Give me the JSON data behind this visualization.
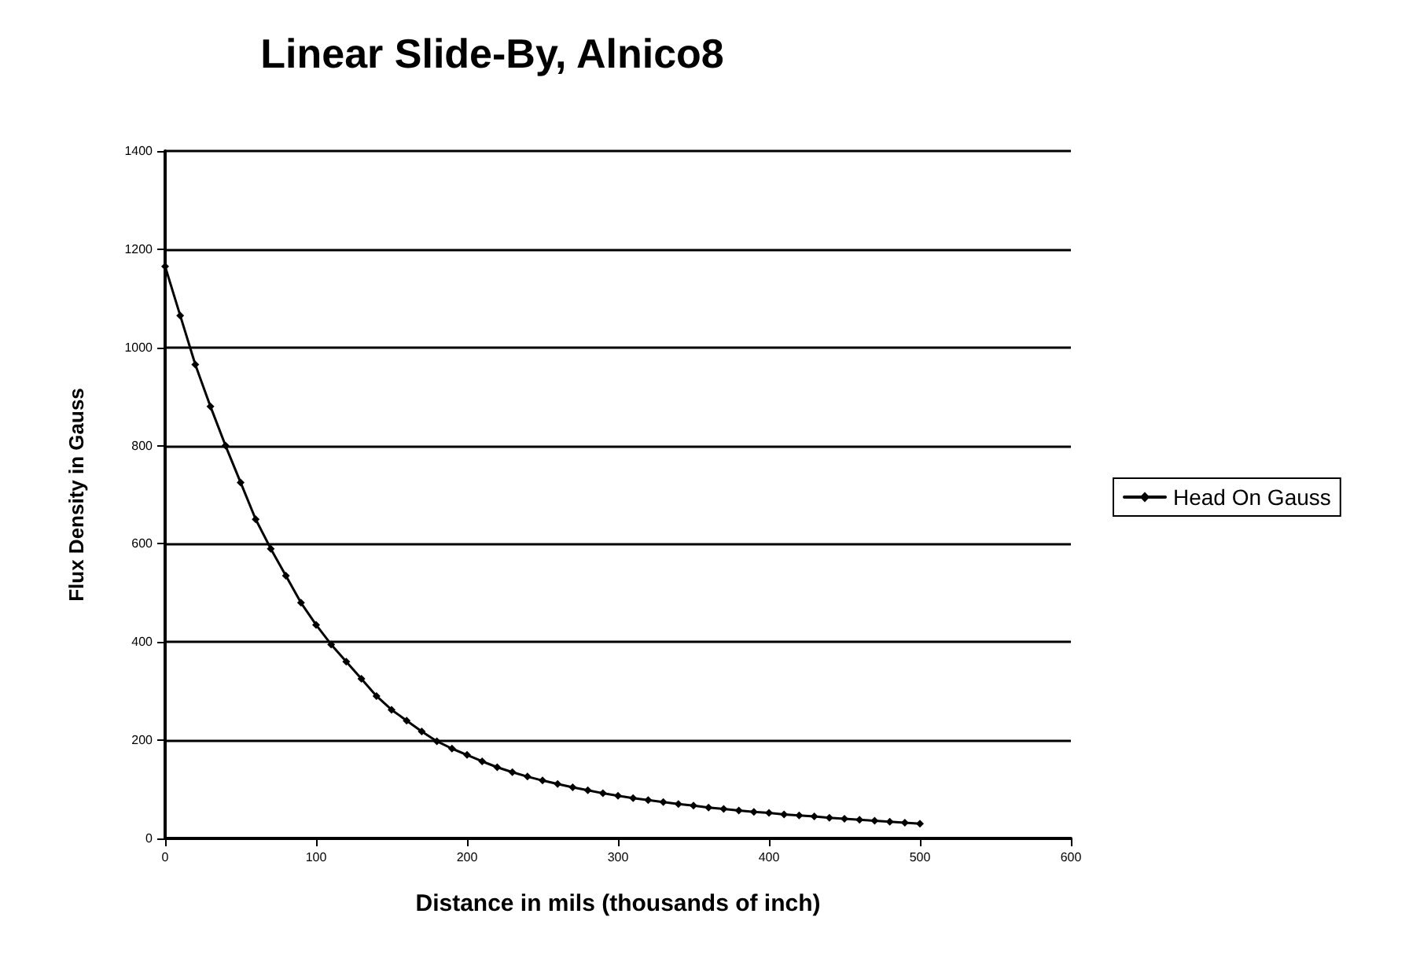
{
  "chart_data": {
    "type": "line",
    "title": "Linear Slide-By, Alnico8",
    "xlabel": "Distance in mils (thousands of inch)",
    "ylabel": "Flux Density in Gauss",
    "x": [
      0,
      10,
      20,
      30,
      40,
      50,
      60,
      70,
      80,
      90,
      100,
      110,
      120,
      130,
      140,
      150,
      160,
      170,
      180,
      190,
      200,
      210,
      220,
      230,
      240,
      250,
      260,
      270,
      280,
      290,
      300,
      310,
      320,
      330,
      340,
      350,
      360,
      370,
      380,
      390,
      400,
      410,
      420,
      430,
      440,
      450,
      460,
      470,
      480,
      490,
      500
    ],
    "series": [
      {
        "name": "Head On Gauss",
        "color": "#000000",
        "values": [
          1165,
          1065,
          965,
          880,
          800,
          725,
          650,
          590,
          535,
          480,
          435,
          395,
          360,
          325,
          290,
          262,
          240,
          218,
          198,
          183,
          170,
          157,
          145,
          135,
          126,
          118,
          111,
          104,
          98,
          92,
          87,
          82,
          78,
          74,
          70,
          67,
          63,
          60,
          57,
          54,
          52,
          49,
          47,
          45,
          42,
          40,
          38,
          36,
          34,
          32,
          30
        ]
      }
    ],
    "xlim": [
      0,
      600
    ],
    "xticks": [
      0,
      100,
      200,
      300,
      400,
      500,
      600
    ],
    "ylim": [
      0,
      1400
    ],
    "yticks": [
      0,
      200,
      400,
      600,
      800,
      1000,
      1200,
      1400
    ],
    "grid": "y",
    "legend": "right",
    "marker": "diamond",
    "line_style": "solid"
  }
}
